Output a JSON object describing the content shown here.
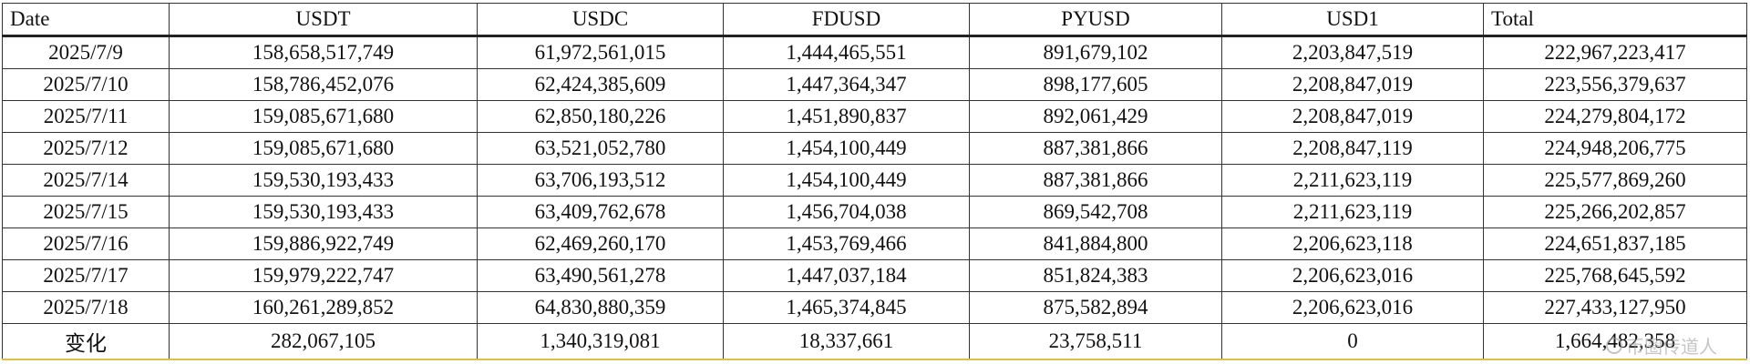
{
  "table": {
    "columns": [
      "Date",
      "USDT",
      "USDC",
      "FDUSD",
      "PYUSD",
      "USD1",
      "Total"
    ],
    "rows": [
      [
        "2025/7/9",
        "158,658,517,749",
        "61,972,561,015",
        "1,444,465,551",
        "891,679,102",
        "2,203,847,519",
        "222,967,223,417"
      ],
      [
        "2025/7/10",
        "158,786,452,076",
        "62,424,385,609",
        "1,447,364,347",
        "898,177,605",
        "2,208,847,019",
        "223,556,379,637"
      ],
      [
        "2025/7/11",
        "159,085,671,680",
        "62,850,180,226",
        "1,451,890,837",
        "892,061,429",
        "2,208,847,019",
        "224,279,804,172"
      ],
      [
        "2025/7/12",
        "159,085,671,680",
        "63,521,052,780",
        "1,454,100,449",
        "887,381,866",
        "2,208,847,119",
        "224,948,206,775"
      ],
      [
        "2025/7/14",
        "159,530,193,433",
        "63,706,193,512",
        "1,454,100,449",
        "887,381,866",
        "2,211,623,119",
        "225,577,869,260"
      ],
      [
        "2025/7/15",
        "159,530,193,433",
        "63,409,762,678",
        "1,456,704,038",
        "869,542,708",
        "2,211,623,119",
        "225,266,202,857"
      ],
      [
        "2025/7/16",
        "159,886,922,749",
        "62,469,260,170",
        "1,453,769,466",
        "841,884,800",
        "2,206,623,118",
        "224,651,837,185"
      ],
      [
        "2025/7/17",
        "159,979,222,747",
        "63,490,561,278",
        "1,447,037,184",
        "851,824,383",
        "2,206,623,016",
        "225,768,645,592"
      ],
      [
        "2025/7/18",
        "160,261,289,852",
        "64,830,880,359",
        "1,465,374,845",
        "875,582,894",
        "2,206,623,016",
        "227,433,127,950"
      ]
    ],
    "change_row": [
      "变化",
      "282,067,105",
      "1,340,319,081",
      "18,337,661",
      "23,758,511",
      "0",
      "1,664,482,358"
    ]
  },
  "watermark": {
    "icon": "circle-logo-icon",
    "text": "币圈传道人"
  }
}
